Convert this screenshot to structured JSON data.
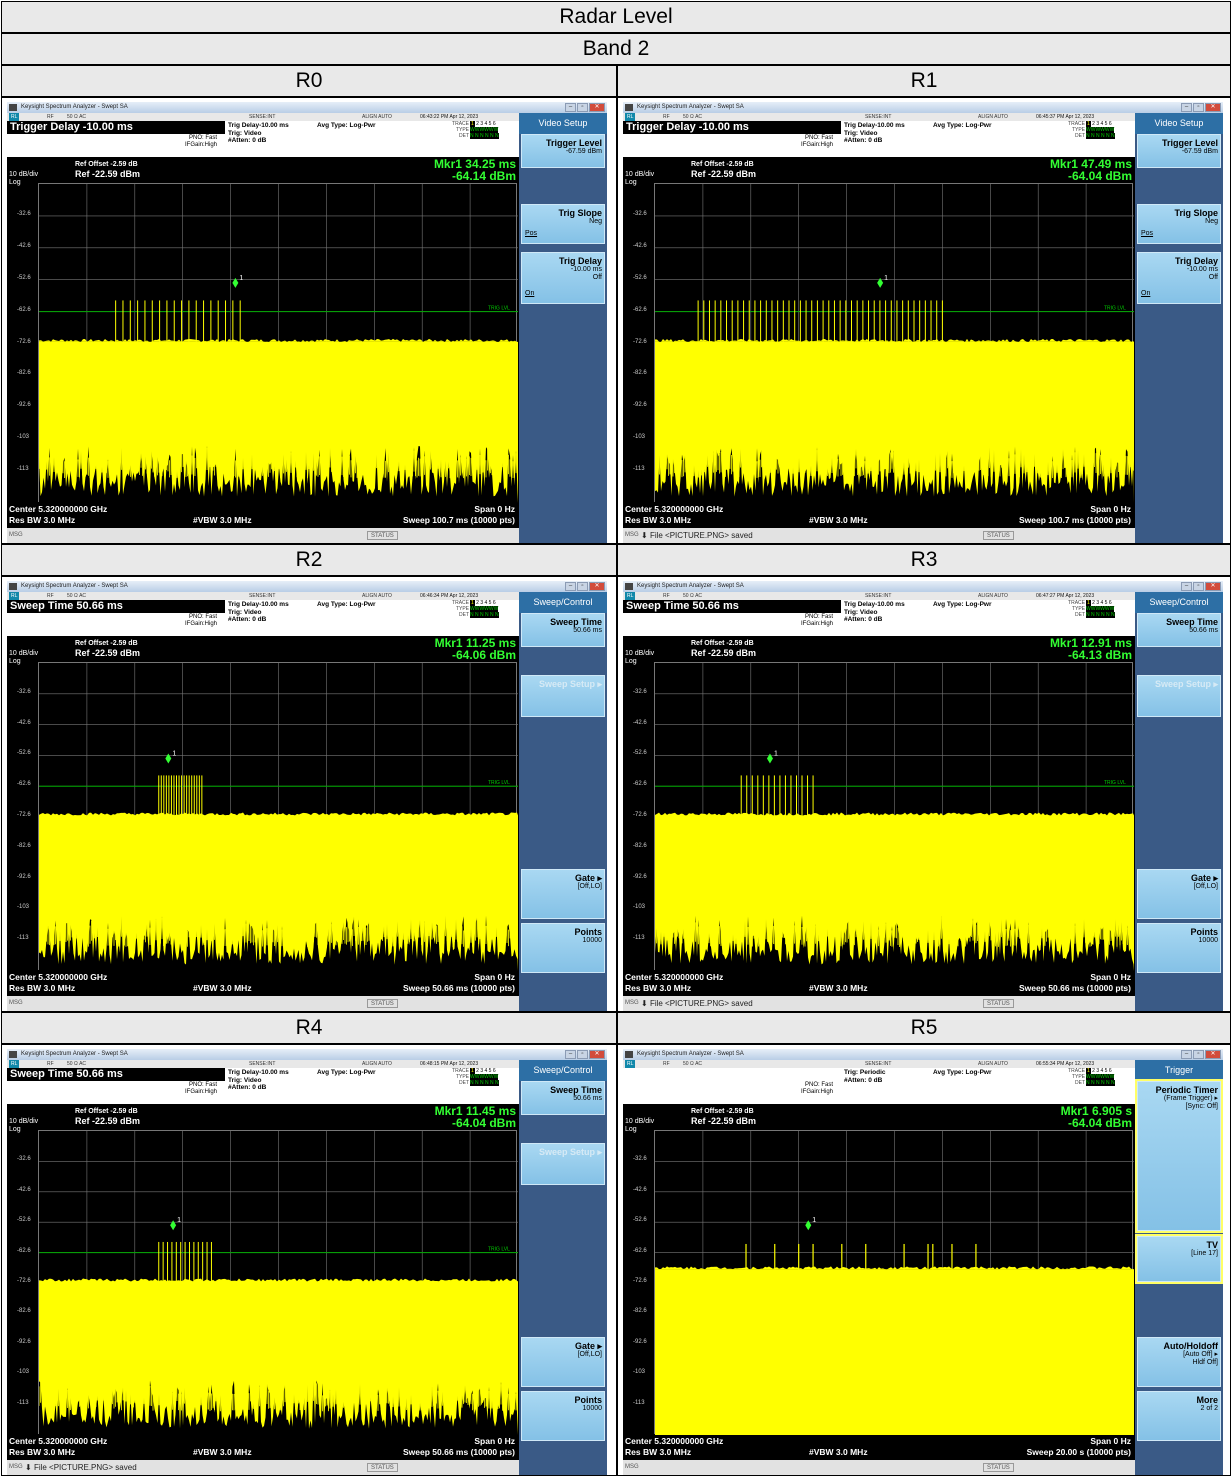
{
  "doc": {
    "title": "Radar Level",
    "band": "Band 2"
  },
  "panels": [
    {
      "label": "R0",
      "window_title": "Keysight Spectrum Analyzer - Swept SA",
      "statusline": {
        "rl": "RL",
        "rf": "RF",
        "ohm": "50 Ω  AC",
        "sense": "SENSE:INT",
        "align": "ALIGN AUTO",
        "time": "06:43:22 PM Apr 12, 2023"
      },
      "active_function": "Trigger Delay -10.00 ms",
      "pno": "PNO: Fast",
      "ifgain": "IFGain:High",
      "trig": [
        "Trig Delay-10.00 ms",
        "Trig: Video",
        "#Atten: 0 dB"
      ],
      "avg": "Avg Type: Log-Pwr",
      "ref_offset": "Ref Offset -2.59 dB",
      "ref": "Ref -22.59 dBm",
      "scale": "10 dB/div",
      "log": "Log",
      "mkr_time": "Mkr1 34.25 ms",
      "mkr_level": "-64.14 dBm",
      "center": "Center 5.320000000 GHz",
      "rbw": "Res BW 3.0 MHz",
      "vbw": "#VBW 3.0 MHz",
      "span": "Span 0 Hz",
      "sweep": "Sweep  100.7 ms (10000 pts)",
      "msg": "MSG",
      "file": "",
      "status": "STATUS",
      "softkey_title": "Video Setup",
      "pulse_count": 18,
      "pulse_start": 0.16,
      "pulse_end": 0.42,
      "marker_pos": 0.41,
      "trig_lvl": true,
      "noise": "heavy",
      "softkeys": [
        {
          "title": "Trigger Level",
          "sub": "-67.59 dBm",
          "u": "",
          "top": 21,
          "h": 34
        },
        {
          "title": "Trig Slope",
          "sub": "Neg",
          "u": "Pos",
          "top": 91,
          "h": 40
        },
        {
          "title": "Trig Delay",
          "sub": "-10.00 ms",
          "sub2": "Off",
          "u": "On",
          "top": 139,
          "h": 52
        }
      ]
    },
    {
      "label": "R1",
      "window_title": "Keysight Spectrum Analyzer - Swept SA",
      "statusline": {
        "rl": "RL",
        "rf": "RF",
        "ohm": "50 Ω  AC",
        "sense": "SENSE:INT",
        "align": "ALIGN AUTO",
        "time": "06:45:37 PM Apr 12, 2023"
      },
      "active_function": "Trigger Delay -10.00 ms",
      "pno": "PNO: Fast",
      "ifgain": "IFGain:High",
      "trig": [
        "Trig Delay-10.00 ms",
        "Trig: Video",
        "#Atten: 0 dB"
      ],
      "avg": "Avg Type: Log-Pwr",
      "ref_offset": "Ref Offset -2.59 dB",
      "ref": "Ref -22.59 dBm",
      "scale": "10 dB/div",
      "log": "Log",
      "mkr_time": "Mkr1 47.49 ms",
      "mkr_level": "-64.04 dBm",
      "center": "Center 5.320000000 GHz",
      "rbw": "Res BW 3.0 MHz",
      "vbw": "#VBW 3.0 MHz",
      "span": "Span 0 Hz",
      "sweep": "Sweep  100.7 ms (10000 pts)",
      "msg": "MSG",
      "file": "File <PICTURE.PNG> saved",
      "status": "STATUS",
      "softkey_title": "Video Setup",
      "pulse_count": 44,
      "pulse_start": 0.09,
      "pulse_end": 0.6,
      "marker_pos": 0.47,
      "trig_lvl": true,
      "noise": "heavy",
      "softkeys": [
        {
          "title": "Trigger Level",
          "sub": "-67.59 dBm",
          "u": "",
          "top": 21,
          "h": 34
        },
        {
          "title": "Trig Slope",
          "sub": "Neg",
          "u": "Pos",
          "top": 91,
          "h": 40
        },
        {
          "title": "Trig Delay",
          "sub": "-10.00 ms",
          "sub2": "Off",
          "u": "On",
          "top": 139,
          "h": 52
        }
      ]
    },
    {
      "label": "R2",
      "window_title": "Keysight Spectrum Analyzer - Swept SA",
      "statusline": {
        "rl": "RL",
        "rf": "RF",
        "ohm": "50 Ω  AC",
        "sense": "SENSE:INT",
        "align": "ALIGN AUTO",
        "time": "06:46:34 PM Apr 12, 2023"
      },
      "active_function": "Sweep Time 50.66 ms",
      "pno": "PNO: Fast",
      "ifgain": "IFGain:High",
      "trig": [
        "Trig Delay-10.00 ms",
        "Trig: Video",
        "#Atten: 0 dB"
      ],
      "avg": "Avg Type: Log-Pwr",
      "ref_offset": "Ref Offset -2.59 dB",
      "ref": "Ref -22.59 dBm",
      "scale": "10 dB/div",
      "log": "Log",
      "mkr_time": "Mkr1 11.25 ms",
      "mkr_level": "-64.06 dBm",
      "center": "Center 5.320000000 GHz",
      "rbw": "Res BW 3.0 MHz",
      "vbw": "#VBW 3.0 MHz",
      "span": "Span 0 Hz",
      "sweep": "Sweep  50.66 ms (10000 pts)",
      "msg": "MSG",
      "file": "",
      "status": "STATUS",
      "softkey_title": "Sweep/Control",
      "pulse_count": 18,
      "pulse_start": 0.25,
      "pulse_end": 0.34,
      "marker_pos": 0.27,
      "trig_lvl": true,
      "noise": "heavy",
      "softkeys": [
        {
          "title": "Sweep Time",
          "sub": "50.66 ms",
          "u": "",
          "top": 21,
          "h": 34
        },
        {
          "title": "Sweep Setup ▸",
          "sub": "",
          "u": "",
          "top": 83,
          "h": 42,
          "dis": true
        },
        {
          "title": "Gate ▸",
          "sub": "[Off,LO]",
          "u": "",
          "top": 277,
          "h": 50
        },
        {
          "title": "Points",
          "sub": "10000",
          "u": "",
          "top": 331,
          "h": 50
        }
      ]
    },
    {
      "label": "R3",
      "window_title": "Keysight Spectrum Analyzer - Swept SA",
      "statusline": {
        "rl": "RL",
        "rf": "RF",
        "ohm": "50 Ω  AC",
        "sense": "SENSE:INT",
        "align": "ALIGN AUTO",
        "time": "06:47:27 PM Apr 12, 2023"
      },
      "active_function": "Sweep Time 50.66 ms",
      "pno": "PNO: Fast",
      "ifgain": "IFGain:High",
      "trig": [
        "Trig Delay-10.00 ms",
        "Trig: Video",
        "#Atten: 0 dB"
      ],
      "avg": "Avg Type: Log-Pwr",
      "ref_offset": "Ref Offset -2.59 dB",
      "ref": "Ref -22.59 dBm",
      "scale": "10 dB/div",
      "log": "Log",
      "mkr_time": "Mkr1 12.91 ms",
      "mkr_level": "-64.13 dBm",
      "center": "Center 5.320000000 GHz",
      "rbw": "Res BW 3.0 MHz",
      "vbw": "#VBW 3.0 MHz",
      "span": "Span 0 Hz",
      "sweep": "Sweep  50.66 ms (10000 pts)",
      "msg": "MSG",
      "file": "File <PICTURE.PNG> saved",
      "status": "STATUS",
      "softkey_title": "Sweep/Control",
      "pulse_count": 14,
      "pulse_start": 0.18,
      "pulse_end": 0.33,
      "marker_pos": 0.24,
      "trig_lvl": true,
      "noise": "heavy",
      "softkeys": [
        {
          "title": "Sweep Time",
          "sub": "50.66 ms",
          "u": "",
          "top": 21,
          "h": 34
        },
        {
          "title": "Sweep Setup ▸",
          "sub": "",
          "u": "",
          "top": 83,
          "h": 42,
          "dis": true
        },
        {
          "title": "Gate ▸",
          "sub": "[Off,LO]",
          "u": "",
          "top": 277,
          "h": 50
        },
        {
          "title": "Points",
          "sub": "10000",
          "u": "",
          "top": 331,
          "h": 50
        }
      ]
    },
    {
      "label": "R4",
      "window_title": "Keysight Spectrum Analyzer - Swept SA",
      "statusline": {
        "rl": "RL",
        "rf": "RF",
        "ohm": "50 Ω  AC",
        "sense": "SENSE:INT",
        "align": "ALIGN AUTO",
        "time": "06:48:15 PM Apr 12, 2023"
      },
      "active_function": "Sweep Time 50.66 ms",
      "pno": "PNO: Fast",
      "ifgain": "IFGain:High",
      "trig": [
        "Trig Delay-10.00 ms",
        "Trig: Video",
        "#Atten: 0 dB"
      ],
      "avg": "Avg Type: Log-Pwr",
      "ref_offset": "Ref Offset -2.59 dB",
      "ref": "Ref -22.59 dBm",
      "scale": "10 dB/div",
      "log": "Log",
      "mkr_time": "Mkr1 11.45 ms",
      "mkr_level": "-64.04 dBm",
      "center": "Center 5.320000000 GHz",
      "rbw": "Res BW 3.0 MHz",
      "vbw": "#VBW 3.0 MHz",
      "span": "Span 0 Hz",
      "sweep": "Sweep  50.66 ms (10000 pts)",
      "msg": "MSG",
      "file": "File <PICTURE.PNG> saved",
      "status": "STATUS",
      "softkey_title": "Sweep/Control",
      "pulse_count": 13,
      "pulse_start": 0.25,
      "pulse_end": 0.36,
      "marker_pos": 0.28,
      "trig_lvl": true,
      "noise": "heavy",
      "softkeys": [
        {
          "title": "Sweep Time",
          "sub": "50.66 ms",
          "u": "",
          "top": 21,
          "h": 34
        },
        {
          "title": "Sweep Setup ▸",
          "sub": "",
          "u": "",
          "top": 83,
          "h": 42,
          "dis": true
        },
        {
          "title": "Gate ▸",
          "sub": "[Off,LO]",
          "u": "",
          "top": 277,
          "h": 50
        },
        {
          "title": "Points",
          "sub": "10000",
          "u": "",
          "top": 331,
          "h": 50
        }
      ]
    },
    {
      "label": "R5",
      "window_title": "Keysight Spectrum Analyzer - Swept SA",
      "statusline": {
        "rl": "RL",
        "rf": "RF",
        "ohm": "50 Ω  AC",
        "sense": "SENSE:INT",
        "align": "ALIGN AUTO",
        "time": "06:55:34 PM Apr 12, 2023"
      },
      "active_function": "",
      "pno": "PNO: Fast",
      "ifgain": "IFGain:High",
      "trig": [
        "",
        "Trig: Periodic",
        "#Atten: 0 dB"
      ],
      "avg": "Avg Type: Log-Pwr",
      "ref_offset": "Ref Offset -2.59 dB",
      "ref": "Ref -22.59 dBm",
      "scale": "10 dB/div",
      "log": "Log",
      "mkr_time": "Mkr1 6.905 s",
      "mkr_level": "-64.04 dBm",
      "center": "Center 5.320000000 GHz",
      "rbw": "Res BW 3.0 MHz",
      "vbw": "#VBW 3.0 MHz",
      "span": "Span 0 Hz",
      "sweep": "Sweep  20.00 s (10000 pts)",
      "msg": "MSG",
      "file": "",
      "status": "STATUS",
      "softkey_title": "Trigger",
      "pulse_count": 0,
      "pulse_start": 0,
      "pulse_end": 0,
      "marker_pos": 0.32,
      "trig_lvl": false,
      "noise": "flat",
      "sparse_pulses": [
        0.19,
        0.25,
        0.3,
        0.33,
        0.39,
        0.44,
        0.52,
        0.57,
        0.58,
        0.62,
        0.67
      ],
      "softkeys": [
        {
          "title": "Periodic Timer",
          "sub": "(Frame Trigger) ▸",
          "sub2": "[Sync: Off]",
          "u": "",
          "top": 21,
          "h": 150,
          "sel": true
        },
        {
          "title": "TV",
          "sub": "[Line 17]",
          "u": "",
          "top": 176,
          "h": 46,
          "sel": true
        },
        {
          "title": "Auto/Holdoff",
          "sub": "[Auto Off] ▸",
          "sub2": "Hldf Off]",
          "u": "",
          "top": 277,
          "h": 50
        },
        {
          "title": "More",
          "sub": "2 of 2",
          "u": "",
          "top": 331,
          "h": 50
        }
      ]
    }
  ],
  "y_ticks": [
    "-32.6",
    "-42.6",
    "-52.6",
    "-62.6",
    "-72.6",
    "-82.6",
    "-92.6",
    "-103",
    "-113"
  ],
  "trg_lbl": "TRIG LVL",
  "colors": {
    "trace": "#ffff00",
    "grid": "#777777",
    "marker": "#33ff33",
    "trig_line": "#00aa00"
  }
}
